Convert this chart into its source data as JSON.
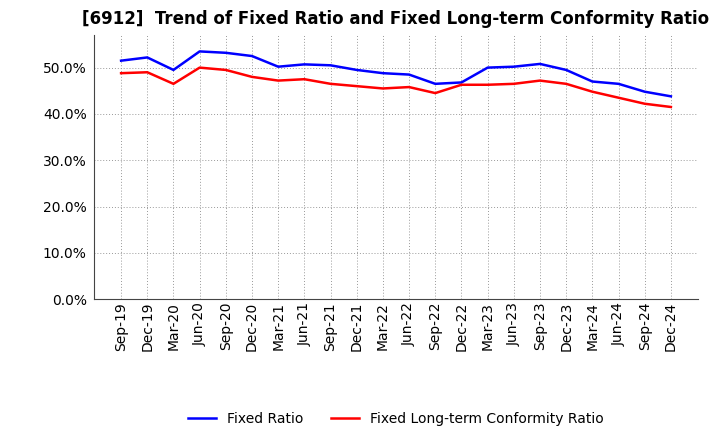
{
  "title": "[6912]  Trend of Fixed Ratio and Fixed Long-term Conformity Ratio",
  "x_labels": [
    "Sep-19",
    "Dec-19",
    "Mar-20",
    "Jun-20",
    "Sep-20",
    "Dec-20",
    "Mar-21",
    "Jun-21",
    "Sep-21",
    "Dec-21",
    "Mar-22",
    "Jun-22",
    "Sep-22",
    "Dec-22",
    "Mar-23",
    "Jun-23",
    "Sep-23",
    "Dec-23",
    "Mar-24",
    "Jun-24",
    "Sep-24",
    "Dec-24"
  ],
  "fixed_ratio": [
    51.5,
    52.2,
    49.5,
    53.5,
    53.2,
    52.5,
    50.2,
    50.7,
    50.5,
    49.5,
    48.8,
    48.5,
    46.5,
    46.8,
    50.0,
    50.2,
    50.8,
    49.5,
    47.0,
    46.5,
    44.8,
    43.8
  ],
  "fixed_lt_ratio": [
    48.8,
    49.0,
    46.5,
    50.0,
    49.5,
    48.0,
    47.2,
    47.5,
    46.5,
    46.0,
    45.5,
    45.8,
    44.5,
    46.3,
    46.3,
    46.5,
    47.2,
    46.5,
    44.8,
    43.5,
    42.2,
    41.5
  ],
  "ylim": [
    0,
    57
  ],
  "yticks": [
    0.0,
    10.0,
    20.0,
    30.0,
    40.0,
    50.0
  ],
  "line_color_blue": "#0000FF",
  "line_color_red": "#FF0000",
  "background_color": "#FFFFFF",
  "grid_color": "#999999",
  "legend_fixed_ratio": "Fixed Ratio",
  "legend_fixed_lt_ratio": "Fixed Long-term Conformity Ratio",
  "title_fontsize": 12,
  "axis_fontsize": 10,
  "legend_fontsize": 10
}
